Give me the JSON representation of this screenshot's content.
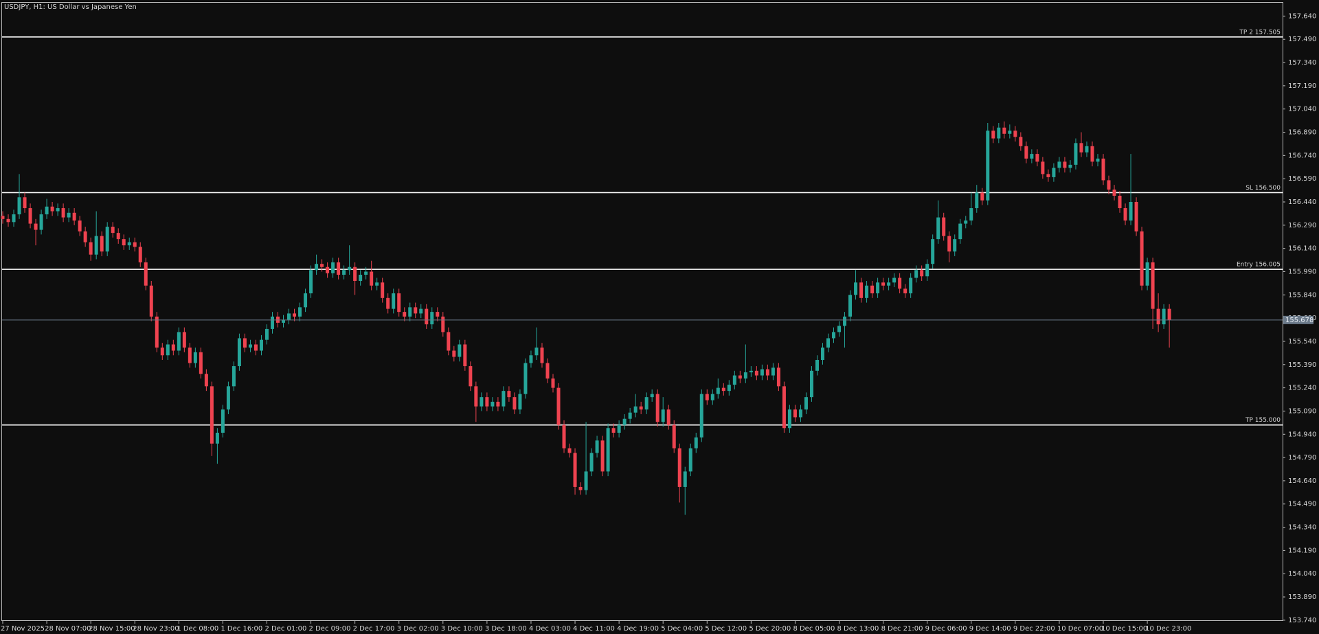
{
  "chart_data": {
    "type": "candlestick",
    "title": "USDJPY, H1:  US Dollar vs Japanese Yen",
    "categories": [
      "27 Nov 2025",
      null,
      null,
      null,
      null,
      null,
      null,
      null,
      "28 Nov 07:00",
      null,
      null,
      null,
      null,
      null,
      null,
      null,
      "28 Nov 15:00",
      null,
      null,
      null,
      null,
      null,
      null,
      null,
      "28 Nov 23:00",
      null,
      null,
      null,
      null,
      null,
      null,
      null,
      "1 Dec 08:00",
      null,
      null,
      null,
      null,
      null,
      null,
      null,
      "1 Dec 16:00",
      null,
      null,
      null,
      null,
      null,
      null,
      null,
      "2 Dec 01:00",
      null,
      null,
      null,
      null,
      null,
      null,
      null,
      "2 Dec 09:00",
      null,
      null,
      null,
      null,
      null,
      null,
      null,
      "2 Dec 17:00",
      null,
      null,
      null,
      null,
      null,
      null,
      null,
      "3 Dec 02:00",
      null,
      null,
      null,
      null,
      null,
      null,
      null,
      "3 Dec 10:00",
      null,
      null,
      null,
      null,
      null,
      null,
      null,
      "3 Dec 18:00",
      null,
      null,
      null,
      null,
      null,
      null,
      null,
      "4 Dec 03:00",
      null,
      null,
      null,
      null,
      null,
      null,
      null,
      "4 Dec 11:00",
      null,
      null,
      null,
      null,
      null,
      null,
      null,
      "4 Dec 19:00",
      null,
      null,
      null,
      null,
      null,
      null,
      null,
      "5 Dec 04:00",
      null,
      null,
      null,
      null,
      null,
      null,
      null,
      "5 Dec 12:00",
      null,
      null,
      null,
      null,
      null,
      null,
      null,
      "5 Dec 20:00",
      null,
      null,
      null,
      null,
      null,
      null,
      null,
      "8 Dec 05:00",
      null,
      null,
      null,
      null,
      null,
      null,
      null,
      "8 Dec 13:00",
      null,
      null,
      null,
      null,
      null,
      null,
      null,
      "8 Dec 21:00",
      null,
      null,
      null,
      null,
      null,
      null,
      null,
      "9 Dec 06:00",
      null,
      null,
      null,
      null,
      null,
      null,
      null,
      "9 Dec 14:00",
      null,
      null,
      null,
      null,
      null,
      null,
      null,
      "9 Dec 22:00",
      null,
      null,
      null,
      null,
      null,
      null,
      null,
      "10 Dec 07:00",
      null,
      null,
      null,
      null,
      null,
      null,
      null,
      "10 Dec 15:00",
      null,
      null,
      null,
      null,
      null,
      null,
      null,
      "10 Dec 23:00",
      null,
      null,
      null,
      null
    ],
    "open": [
      156.35,
      156.33,
      156.31,
      156.36,
      156.47,
      156.4,
      156.3,
      156.26,
      156.36,
      156.41,
      156.38,
      156.4,
      156.34,
      156.37,
      156.32,
      156.25,
      156.18,
      156.1,
      156.22,
      156.12,
      156.28,
      156.24,
      156.2,
      156.16,
      156.18,
      156.15,
      156.05,
      155.9,
      155.7,
      155.5,
      155.45,
      155.52,
      155.48,
      155.6,
      155.5,
      155.4,
      155.47,
      155.33,
      155.25,
      154.88,
      154.95,
      155.1,
      155.25,
      155.38,
      155.56,
      155.5,
      155.52,
      155.48,
      155.55,
      155.62,
      155.7,
      155.66,
      155.68,
      155.72,
      155.7,
      155.76,
      155.85,
      156.0,
      156.04,
      156.02,
      155.98,
      156.05,
      155.97,
      156.0,
      156.02,
      155.93,
      155.97,
      155.99,
      155.9,
      155.92,
      155.82,
      155.75,
      155.85,
      155.73,
      155.7,
      155.76,
      155.72,
      155.75,
      155.65,
      155.73,
      155.7,
      155.6,
      155.48,
      155.44,
      155.52,
      155.38,
      155.25,
      155.12,
      155.18,
      155.12,
      155.15,
      155.12,
      155.22,
      155.18,
      155.1,
      155.2,
      155.4,
      155.45,
      155.5,
      155.4,
      155.3,
      155.24,
      155.0,
      154.85,
      154.82,
      154.6,
      154.58,
      154.7,
      154.82,
      154.9,
      154.7,
      154.98,
      154.95,
      155.0,
      155.04,
      155.08,
      155.12,
      155.1,
      155.18,
      155.2,
      155.02,
      155.1,
      155.0,
      154.85,
      154.6,
      154.7,
      154.85,
      154.92,
      155.2,
      155.16,
      155.2,
      155.24,
      155.22,
      155.26,
      155.32,
      155.3,
      155.34,
      155.35,
      155.32,
      155.36,
      155.32,
      155.37,
      155.25,
      154.98,
      155.1,
      155.05,
      155.1,
      155.18,
      155.35,
      155.42,
      155.5,
      155.56,
      155.6,
      155.64,
      155.7,
      155.84,
      155.92,
      155.82,
      155.9,
      155.85,
      155.92,
      155.9,
      155.92,
      155.95,
      155.88,
      155.85,
      155.95,
      156.0,
      155.96,
      156.04,
      156.2,
      156.34,
      156.22,
      156.12,
      156.2,
      156.3,
      156.32,
      156.4,
      156.5,
      156.45,
      156.9,
      156.85,
      156.92,
      156.88,
      156.9,
      156.86,
      156.8,
      156.72,
      156.75,
      156.7,
      156.62,
      156.6,
      156.66,
      156.7,
      156.66,
      156.68,
      156.82,
      156.76,
      156.8,
      156.7,
      156.72,
      156.58,
      156.52,
      156.48,
      156.4,
      156.32,
      156.44,
      156.25,
      155.9,
      156.05,
      155.75,
      155.65,
      155.75
    ],
    "high": [
      156.38,
      156.36,
      156.39,
      156.62,
      156.5,
      156.43,
      156.33,
      156.39,
      156.46,
      156.44,
      156.43,
      156.43,
      156.4,
      156.4,
      156.35,
      156.28,
      156.21,
      156.38,
      156.25,
      156.31,
      156.31,
      156.27,
      156.23,
      156.21,
      156.21,
      156.18,
      156.08,
      155.93,
      155.73,
      155.53,
      155.55,
      155.55,
      155.63,
      155.63,
      155.53,
      155.5,
      155.5,
      155.36,
      155.28,
      154.98,
      155.13,
      155.28,
      155.41,
      155.59,
      155.59,
      155.55,
      155.55,
      155.58,
      155.65,
      155.73,
      155.73,
      155.71,
      155.75,
      155.75,
      155.79,
      155.88,
      156.03,
      156.1,
      156.07,
      156.05,
      156.08,
      156.08,
      156.03,
      156.16,
      156.05,
      156.0,
      156.02,
      156.06,
      155.95,
      155.95,
      155.85,
      155.88,
      155.88,
      155.76,
      155.79,
      155.79,
      155.78,
      155.78,
      155.76,
      155.76,
      155.73,
      155.63,
      155.51,
      155.55,
      155.55,
      155.41,
      155.28,
      155.21,
      155.21,
      155.18,
      155.18,
      155.25,
      155.25,
      155.21,
      155.23,
      155.43,
      155.48,
      155.63,
      155.53,
      155.43,
      155.33,
      155.27,
      155.03,
      154.88,
      154.85,
      154.63,
      155.02,
      154.85,
      154.93,
      154.93,
      155.01,
      155.01,
      155.03,
      155.07,
      155.11,
      155.2,
      155.15,
      155.21,
      155.23,
      155.23,
      155.18,
      155.13,
      155.03,
      154.88,
      154.73,
      154.88,
      154.95,
      155.23,
      155.23,
      155.23,
      155.3,
      155.27,
      155.29,
      155.35,
      155.35,
      155.52,
      155.38,
      155.38,
      155.39,
      155.39,
      155.4,
      155.4,
      155.28,
      155.13,
      155.13,
      155.13,
      155.21,
      155.38,
      155.45,
      155.53,
      155.59,
      155.63,
      155.67,
      155.73,
      155.87,
      156.0,
      155.95,
      155.93,
      155.93,
      155.95,
      155.95,
      155.95,
      155.98,
      155.98,
      155.91,
      155.98,
      156.03,
      156.03,
      156.07,
      156.23,
      156.45,
      156.37,
      156.25,
      156.23,
      156.33,
      156.35,
      156.5,
      156.55,
      156.53,
      156.95,
      156.93,
      156.95,
      156.96,
      156.94,
      156.93,
      156.89,
      156.83,
      156.78,
      156.78,
      156.73,
      156.65,
      156.69,
      156.73,
      156.73,
      156.71,
      156.85,
      156.89,
      156.83,
      156.83,
      156.75,
      156.75,
      156.61,
      156.55,
      156.51,
      156.43,
      156.75,
      156.47,
      156.28,
      156.08,
      156.08,
      155.85,
      155.78,
      155.78
    ],
    "low": [
      156.3,
      156.28,
      156.28,
      156.33,
      156.37,
      156.27,
      156.16,
      156.23,
      156.33,
      156.35,
      156.35,
      156.31,
      156.31,
      156.29,
      156.22,
      156.15,
      156.06,
      156.07,
      156.09,
      156.09,
      156.21,
      156.17,
      156.13,
      156.13,
      156.12,
      156.02,
      155.87,
      155.67,
      155.47,
      155.42,
      155.42,
      155.45,
      155.45,
      155.47,
      155.37,
      155.37,
      155.3,
      155.22,
      154.8,
      154.75,
      154.92,
      155.07,
      155.22,
      155.35,
      155.47,
      155.47,
      155.45,
      155.45,
      155.52,
      155.59,
      155.63,
      155.63,
      155.65,
      155.67,
      155.67,
      155.73,
      155.82,
      155.97,
      155.99,
      155.95,
      155.95,
      155.94,
      155.94,
      155.97,
      155.84,
      155.9,
      155.94,
      155.87,
      155.87,
      155.79,
      155.72,
      155.72,
      155.7,
      155.67,
      155.67,
      155.69,
      155.69,
      155.62,
      155.62,
      155.67,
      155.57,
      155.45,
      155.41,
      155.41,
      155.35,
      155.22,
      155.02,
      155.09,
      155.09,
      155.09,
      155.09,
      155.09,
      155.15,
      155.07,
      155.07,
      155.17,
      155.37,
      155.42,
      155.37,
      155.27,
      155.21,
      154.97,
      154.82,
      154.79,
      154.55,
      154.55,
      154.55,
      154.67,
      154.79,
      154.67,
      154.67,
      154.92,
      154.92,
      154.97,
      155.01,
      155.05,
      155.07,
      155.07,
      155.15,
      154.99,
      154.99,
      154.97,
      154.82,
      154.5,
      154.42,
      154.67,
      154.82,
      154.89,
      155.13,
      155.13,
      155.17,
      155.19,
      155.19,
      155.23,
      155.27,
      155.27,
      155.31,
      155.29,
      155.29,
      155.29,
      155.29,
      155.22,
      154.95,
      154.95,
      155.02,
      155.02,
      155.07,
      155.15,
      155.32,
      155.39,
      155.47,
      155.53,
      155.57,
      155.5,
      155.67,
      155.81,
      155.79,
      155.79,
      155.82,
      155.82,
      155.87,
      155.87,
      155.89,
      155.85,
      155.82,
      155.82,
      155.92,
      155.93,
      155.93,
      156.01,
      156.17,
      156.19,
      156.05,
      156.09,
      156.17,
      156.27,
      156.29,
      156.37,
      156.42,
      156.42,
      156.82,
      156.82,
      156.85,
      156.85,
      156.83,
      156.77,
      156.69,
      156.69,
      156.67,
      156.59,
      156.57,
      156.57,
      156.63,
      156.63,
      156.63,
      156.65,
      156.73,
      156.73,
      156.67,
      156.67,
      156.55,
      156.49,
      156.45,
      156.37,
      156.29,
      156.29,
      156.22,
      155.87,
      155.87,
      155.62,
      155.6,
      155.62,
      155.5
    ],
    "close": [
      156.33,
      156.31,
      156.36,
      156.47,
      156.4,
      156.3,
      156.26,
      156.36,
      156.41,
      156.38,
      156.4,
      156.34,
      156.37,
      156.32,
      156.25,
      156.18,
      156.1,
      156.22,
      156.12,
      156.28,
      156.24,
      156.2,
      156.16,
      156.18,
      156.15,
      156.05,
      155.9,
      155.7,
      155.5,
      155.45,
      155.52,
      155.48,
      155.6,
      155.5,
      155.4,
      155.47,
      155.33,
      155.25,
      154.88,
      154.95,
      155.1,
      155.25,
      155.38,
      155.56,
      155.5,
      155.52,
      155.48,
      155.55,
      155.62,
      155.7,
      155.66,
      155.68,
      155.72,
      155.7,
      155.76,
      155.85,
      156.0,
      156.04,
      156.02,
      155.98,
      156.05,
      155.97,
      156.0,
      156.02,
      155.93,
      155.97,
      155.99,
      155.9,
      155.92,
      155.82,
      155.75,
      155.85,
      155.73,
      155.7,
      155.76,
      155.72,
      155.75,
      155.65,
      155.73,
      155.7,
      155.6,
      155.48,
      155.44,
      155.52,
      155.38,
      155.25,
      155.12,
      155.18,
      155.12,
      155.15,
      155.12,
      155.22,
      155.18,
      155.1,
      155.2,
      155.4,
      155.45,
      155.5,
      155.4,
      155.3,
      155.24,
      155.0,
      154.85,
      154.82,
      154.6,
      154.58,
      154.7,
      154.82,
      154.9,
      154.7,
      154.98,
      154.95,
      155.0,
      155.04,
      155.08,
      155.12,
      155.1,
      155.18,
      155.2,
      155.02,
      155.1,
      155.0,
      154.85,
      154.6,
      154.7,
      154.85,
      154.92,
      155.2,
      155.16,
      155.2,
      155.24,
      155.22,
      155.26,
      155.32,
      155.3,
      155.34,
      155.35,
      155.32,
      155.36,
      155.32,
      155.37,
      155.25,
      154.98,
      155.1,
      155.05,
      155.1,
      155.18,
      155.35,
      155.42,
      155.5,
      155.56,
      155.6,
      155.64,
      155.7,
      155.84,
      155.92,
      155.82,
      155.9,
      155.85,
      155.92,
      155.9,
      155.92,
      155.95,
      155.88,
      155.85,
      155.95,
      156.0,
      155.96,
      156.04,
      156.2,
      156.34,
      156.22,
      156.12,
      156.2,
      156.3,
      156.32,
      156.4,
      156.5,
      156.45,
      156.9,
      156.85,
      156.92,
      156.88,
      156.9,
      156.86,
      156.8,
      156.72,
      156.75,
      156.7,
      156.62,
      156.6,
      156.66,
      156.7,
      156.66,
      156.68,
      156.82,
      156.76,
      156.8,
      156.7,
      156.72,
      156.58,
      156.52,
      156.48,
      156.4,
      156.32,
      156.44,
      156.25,
      155.9,
      156.05,
      155.75,
      155.65,
      155.75,
      155.678
    ],
    "up_color": "#26a69a",
    "down_color": "#ef4350",
    "ylim": [
      153.735,
      157.726
    ],
    "yticks": [
      {
        "value": 157.64,
        "label": "157.640"
      },
      {
        "value": 157.49,
        "label": "157.490"
      },
      {
        "value": 157.34,
        "label": "157.340"
      },
      {
        "value": 157.19,
        "label": "157.190"
      },
      {
        "value": 157.04,
        "label": "157.040"
      },
      {
        "value": 156.89,
        "label": "156.890"
      },
      {
        "value": 156.74,
        "label": "156.740"
      },
      {
        "value": 156.59,
        "label": "156.590"
      },
      {
        "value": 156.44,
        "label": "156.440"
      },
      {
        "value": 156.29,
        "label": "156.290"
      },
      {
        "value": 156.14,
        "label": "156.140"
      },
      {
        "value": 155.99,
        "label": "155.990"
      },
      {
        "value": 155.84,
        "label": "155.840"
      },
      {
        "value": 155.69,
        "label": "155.690"
      },
      {
        "value": 155.54,
        "label": "155.540"
      },
      {
        "value": 155.39,
        "label": "155.390"
      },
      {
        "value": 155.24,
        "label": "155.240"
      },
      {
        "value": 155.09,
        "label": "155.090"
      },
      {
        "value": 154.94,
        "label": "154.940"
      },
      {
        "value": 154.79,
        "label": "154.790"
      },
      {
        "value": 154.64,
        "label": "154.640"
      },
      {
        "value": 154.49,
        "label": "154.490"
      },
      {
        "value": 154.34,
        "label": "154.340"
      },
      {
        "value": 154.19,
        "label": "154.190"
      },
      {
        "value": 154.04,
        "label": "154.040"
      },
      {
        "value": 153.89,
        "label": "153.890"
      },
      {
        "value": 153.74,
        "label": "153.740"
      }
    ],
    "levels": [
      {
        "label": "TP 2 157.505",
        "value": 157.505
      },
      {
        "label": "SL 156.500",
        "value": 156.5
      },
      {
        "label": "Entry 156.005",
        "value": 156.005
      },
      {
        "label": "TP 155.000",
        "value": 155.0
      }
    ],
    "level_color": "#ffffff",
    "current_price": 155.678,
    "current_price_color": "#6b7a8a",
    "grid": false
  }
}
